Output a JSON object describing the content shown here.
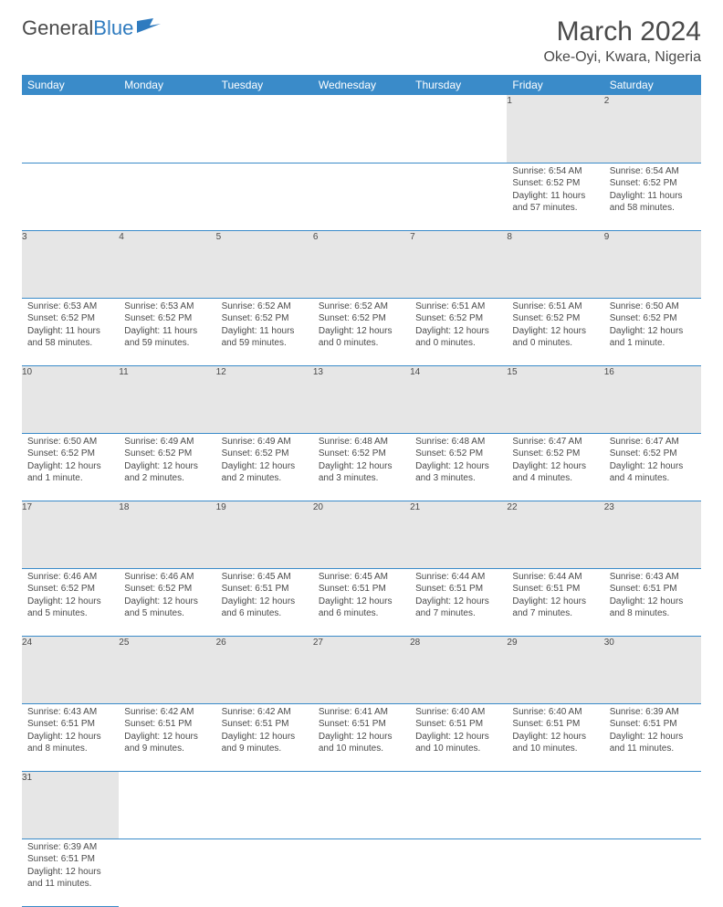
{
  "logo": {
    "text1": "General",
    "text2": "Blue"
  },
  "title": "March 2024",
  "location": "Oke-Oyi, Kwara, Nigeria",
  "colors": {
    "header_bg": "#3a8bc9",
    "header_text": "#ffffff",
    "daynum_bg": "#e6e6e6",
    "border": "#3a8bc9",
    "text": "#4a4a4a",
    "logo_blue": "#2f7bbf"
  },
  "days": [
    "Sunday",
    "Monday",
    "Tuesday",
    "Wednesday",
    "Thursday",
    "Friday",
    "Saturday"
  ],
  "weeks": [
    [
      null,
      null,
      null,
      null,
      null,
      {
        "n": "1",
        "sr": "Sunrise: 6:54 AM",
        "ss": "Sunset: 6:52 PM",
        "dl": "Daylight: 11 hours and 57 minutes."
      },
      {
        "n": "2",
        "sr": "Sunrise: 6:54 AM",
        "ss": "Sunset: 6:52 PM",
        "dl": "Daylight: 11 hours and 58 minutes."
      }
    ],
    [
      {
        "n": "3",
        "sr": "Sunrise: 6:53 AM",
        "ss": "Sunset: 6:52 PM",
        "dl": "Daylight: 11 hours and 58 minutes."
      },
      {
        "n": "4",
        "sr": "Sunrise: 6:53 AM",
        "ss": "Sunset: 6:52 PM",
        "dl": "Daylight: 11 hours and 59 minutes."
      },
      {
        "n": "5",
        "sr": "Sunrise: 6:52 AM",
        "ss": "Sunset: 6:52 PM",
        "dl": "Daylight: 11 hours and 59 minutes."
      },
      {
        "n": "6",
        "sr": "Sunrise: 6:52 AM",
        "ss": "Sunset: 6:52 PM",
        "dl": "Daylight: 12 hours and 0 minutes."
      },
      {
        "n": "7",
        "sr": "Sunrise: 6:51 AM",
        "ss": "Sunset: 6:52 PM",
        "dl": "Daylight: 12 hours and 0 minutes."
      },
      {
        "n": "8",
        "sr": "Sunrise: 6:51 AM",
        "ss": "Sunset: 6:52 PM",
        "dl": "Daylight: 12 hours and 0 minutes."
      },
      {
        "n": "9",
        "sr": "Sunrise: 6:50 AM",
        "ss": "Sunset: 6:52 PM",
        "dl": "Daylight: 12 hours and 1 minute."
      }
    ],
    [
      {
        "n": "10",
        "sr": "Sunrise: 6:50 AM",
        "ss": "Sunset: 6:52 PM",
        "dl": "Daylight: 12 hours and 1 minute."
      },
      {
        "n": "11",
        "sr": "Sunrise: 6:49 AM",
        "ss": "Sunset: 6:52 PM",
        "dl": "Daylight: 12 hours and 2 minutes."
      },
      {
        "n": "12",
        "sr": "Sunrise: 6:49 AM",
        "ss": "Sunset: 6:52 PM",
        "dl": "Daylight: 12 hours and 2 minutes."
      },
      {
        "n": "13",
        "sr": "Sunrise: 6:48 AM",
        "ss": "Sunset: 6:52 PM",
        "dl": "Daylight: 12 hours and 3 minutes."
      },
      {
        "n": "14",
        "sr": "Sunrise: 6:48 AM",
        "ss": "Sunset: 6:52 PM",
        "dl": "Daylight: 12 hours and 3 minutes."
      },
      {
        "n": "15",
        "sr": "Sunrise: 6:47 AM",
        "ss": "Sunset: 6:52 PM",
        "dl": "Daylight: 12 hours and 4 minutes."
      },
      {
        "n": "16",
        "sr": "Sunrise: 6:47 AM",
        "ss": "Sunset: 6:52 PM",
        "dl": "Daylight: 12 hours and 4 minutes."
      }
    ],
    [
      {
        "n": "17",
        "sr": "Sunrise: 6:46 AM",
        "ss": "Sunset: 6:52 PM",
        "dl": "Daylight: 12 hours and 5 minutes."
      },
      {
        "n": "18",
        "sr": "Sunrise: 6:46 AM",
        "ss": "Sunset: 6:52 PM",
        "dl": "Daylight: 12 hours and 5 minutes."
      },
      {
        "n": "19",
        "sr": "Sunrise: 6:45 AM",
        "ss": "Sunset: 6:51 PM",
        "dl": "Daylight: 12 hours and 6 minutes."
      },
      {
        "n": "20",
        "sr": "Sunrise: 6:45 AM",
        "ss": "Sunset: 6:51 PM",
        "dl": "Daylight: 12 hours and 6 minutes."
      },
      {
        "n": "21",
        "sr": "Sunrise: 6:44 AM",
        "ss": "Sunset: 6:51 PM",
        "dl": "Daylight: 12 hours and 7 minutes."
      },
      {
        "n": "22",
        "sr": "Sunrise: 6:44 AM",
        "ss": "Sunset: 6:51 PM",
        "dl": "Daylight: 12 hours and 7 minutes."
      },
      {
        "n": "23",
        "sr": "Sunrise: 6:43 AM",
        "ss": "Sunset: 6:51 PM",
        "dl": "Daylight: 12 hours and 8 minutes."
      }
    ],
    [
      {
        "n": "24",
        "sr": "Sunrise: 6:43 AM",
        "ss": "Sunset: 6:51 PM",
        "dl": "Daylight: 12 hours and 8 minutes."
      },
      {
        "n": "25",
        "sr": "Sunrise: 6:42 AM",
        "ss": "Sunset: 6:51 PM",
        "dl": "Daylight: 12 hours and 9 minutes."
      },
      {
        "n": "26",
        "sr": "Sunrise: 6:42 AM",
        "ss": "Sunset: 6:51 PM",
        "dl": "Daylight: 12 hours and 9 minutes."
      },
      {
        "n": "27",
        "sr": "Sunrise: 6:41 AM",
        "ss": "Sunset: 6:51 PM",
        "dl": "Daylight: 12 hours and 10 minutes."
      },
      {
        "n": "28",
        "sr": "Sunrise: 6:40 AM",
        "ss": "Sunset: 6:51 PM",
        "dl": "Daylight: 12 hours and 10 minutes."
      },
      {
        "n": "29",
        "sr": "Sunrise: 6:40 AM",
        "ss": "Sunset: 6:51 PM",
        "dl": "Daylight: 12 hours and 10 minutes."
      },
      {
        "n": "30",
        "sr": "Sunrise: 6:39 AM",
        "ss": "Sunset: 6:51 PM",
        "dl": "Daylight: 12 hours and 11 minutes."
      }
    ],
    [
      {
        "n": "31",
        "sr": "Sunrise: 6:39 AM",
        "ss": "Sunset: 6:51 PM",
        "dl": "Daylight: 12 hours and 11 minutes."
      },
      null,
      null,
      null,
      null,
      null,
      null
    ]
  ]
}
